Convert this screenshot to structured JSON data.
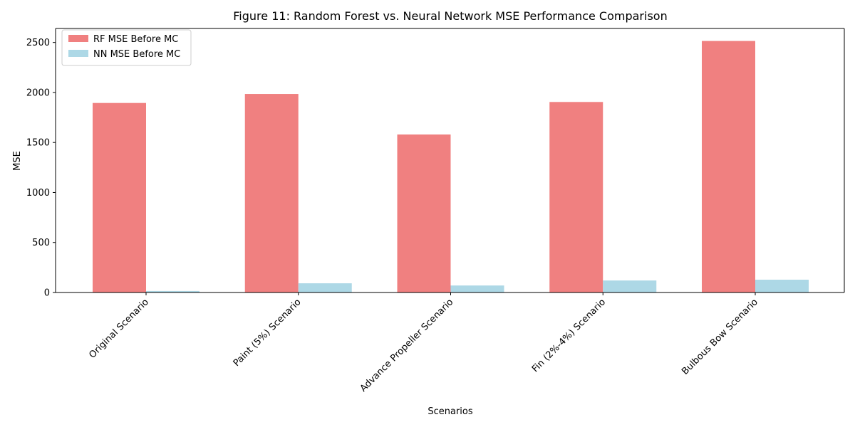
{
  "chart_data": {
    "type": "bar",
    "title": "Figure 11: Random Forest vs. Neural Network MSE Performance Comparison",
    "xlabel": "Scenarios",
    "ylabel": "MSE",
    "categories": [
      "Original Scenario",
      "Paint (5%) Scenario",
      "Advance Propeller Scenario",
      "Fin (2%-4%) Scenario",
      "Bulbous Bow Scenario"
    ],
    "series": [
      {
        "name": "RF MSE Before MC",
        "color": "#f08080",
        "values": [
          1895,
          1985,
          1580,
          1905,
          2515
        ]
      },
      {
        "name": "NN MSE Before MC",
        "color": "#add8e6",
        "values": [
          15,
          92,
          70,
          120,
          128
        ]
      }
    ],
    "ylim": [
      0,
      2640
    ],
    "yticks": [
      "0",
      "500",
      "1000",
      "1500",
      "2000",
      "2500"
    ],
    "grid": false,
    "legend_position": "top-left"
  }
}
